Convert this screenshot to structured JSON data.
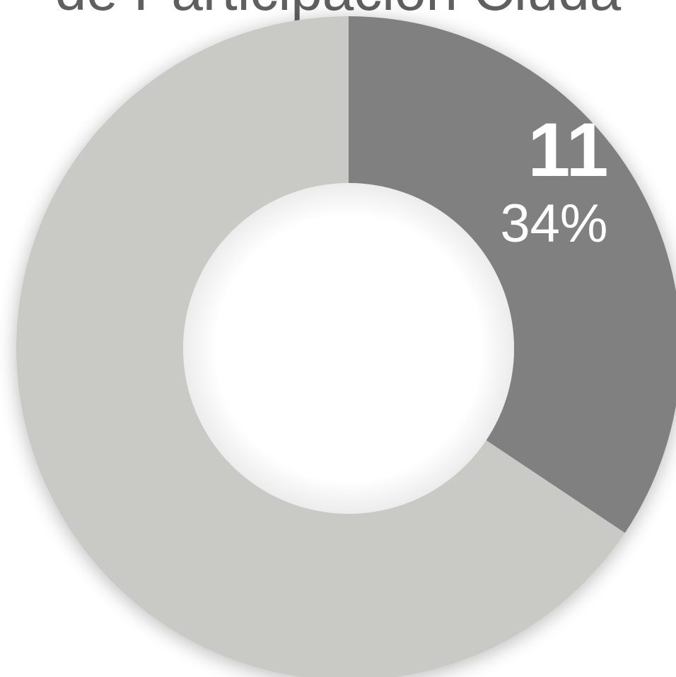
{
  "chart_data": {
    "type": "pie",
    "variant": "donut",
    "title": "de Participación Ciuda",
    "slices": [
      {
        "value": 11,
        "percent": "34%",
        "color": "#808080",
        "labelled": true
      },
      {
        "value": 21,
        "percent": "66%",
        "color": "#c9c9c6",
        "labelled": false
      }
    ],
    "legend": "none"
  }
}
